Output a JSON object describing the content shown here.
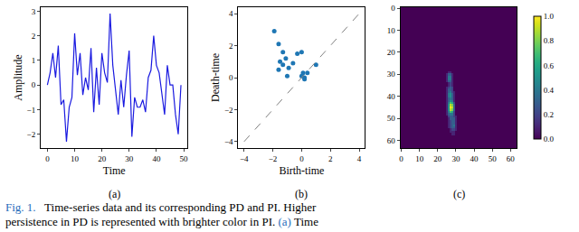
{
  "chart_data": [
    {
      "type": "line",
      "subtitle": "(a)",
      "x_label": "Time",
      "y_label": "Amplitude",
      "color": "#1a1ae0",
      "x": [
        0,
        1,
        2,
        3,
        4,
        5,
        6,
        7,
        8,
        9,
        10,
        11,
        12,
        13,
        14,
        15,
        16,
        17,
        18,
        19,
        20,
        21,
        22,
        23,
        24,
        25,
        26,
        27,
        28,
        29,
        30,
        31,
        32,
        33,
        34,
        35,
        36,
        37,
        38,
        39,
        40,
        41,
        42,
        43,
        44,
        45,
        46,
        47,
        48,
        49
      ],
      "values": [
        0.0,
        0.5,
        1.3,
        0.3,
        1.6,
        -0.8,
        -0.6,
        -2.3,
        -0.9,
        -0.5,
        2.1,
        0.4,
        1.3,
        -0.4,
        0.3,
        -0.2,
        1.5,
        -1.1,
        0.7,
        -0.8,
        1.3,
        0.5,
        0.1,
        2.9,
        0.8,
        -0.3,
        -1.2,
        0.2,
        -0.9,
        0.4,
        1.4,
        -2.1,
        -0.5,
        -0.9,
        -0.9,
        -0.6,
        -1.1,
        0.3,
        0.6,
        2.0,
        0.8,
        0.5,
        -0.3,
        -1.2,
        0.8,
        0.0,
        0.0,
        -1.2,
        -2.0,
        0.0
      ],
      "xlim": [
        -2.45,
        51.45
      ],
      "xticks": [
        0,
        10,
        20,
        30,
        40,
        50
      ],
      "ylim": [
        -2.56,
        3.16
      ],
      "yticks": [
        {
          "value": -2,
          "label": "−2"
        },
        {
          "value": -1,
          "label": "−1"
        },
        0,
        1,
        2,
        3
      ],
      "grid": false
    },
    {
      "type": "scatter",
      "subtitle": "(b)",
      "x_label": "Birth-time",
      "y_label": "Death-time",
      "series": [
        {
          "type": "scatter",
          "color": "#1f77b4",
          "marker": "circle",
          "x": [
            -1.9,
            -1.6,
            -1.3,
            -1.5,
            -1.1,
            -1.3,
            -1.6,
            -0.9,
            -0.6,
            -1.0,
            -0.3,
            0.0,
            0.1,
            0.0,
            0.2,
            0.4,
            1.0,
            0.2
          ],
          "values": [
            2.9,
            2.1,
            1.6,
            1.0,
            1.2,
            0.8,
            0.5,
            0.6,
            0.9,
            0.1,
            1.5,
            1.6,
            0.3,
            0.1,
            -0.1,
            0.3,
            0.8,
            0.0
          ]
        },
        {
          "type": "line",
          "color": "#808080",
          "line_style": "dashed",
          "x": [
            -4,
            4
          ],
          "values": [
            -4,
            4
          ]
        }
      ],
      "xlim": [
        -4.4,
        4.4
      ],
      "xticks": [
        {
          "value": -4,
          "label": "−4"
        },
        {
          "value": -2,
          "label": "−2"
        },
        0,
        2,
        4
      ],
      "ylim": [
        -4.4,
        4.4
      ],
      "yticks": [
        {
          "value": -4,
          "label": "−4"
        },
        {
          "value": -2,
          "label": "−2"
        },
        0,
        2,
        4
      ],
      "grid": false
    },
    {
      "type": "heatmap",
      "subtitle": "(c)",
      "x": [
        22,
        23,
        24,
        25,
        26,
        27,
        28,
        29,
        30,
        31
      ],
      "y": [
        28,
        29,
        30,
        31,
        32,
        33,
        34,
        35,
        36,
        37,
        38,
        39,
        40,
        41,
        42,
        43,
        44,
        45,
        46,
        47,
        48,
        49,
        50,
        51,
        52,
        53,
        54,
        55,
        56,
        57,
        58
      ],
      "cells": [
        [
          0,
          0,
          0,
          0,
          0,
          0,
          0,
          0,
          0,
          0
        ],
        [
          0,
          0,
          0,
          0,
          0.1,
          0.1,
          0,
          0,
          0,
          0
        ],
        [
          0,
          0,
          0,
          0.1,
          0.3,
          0.3,
          0.1,
          0,
          0,
          0
        ],
        [
          0,
          0,
          0,
          0.1,
          0.4,
          0.4,
          0.1,
          0,
          0,
          0
        ],
        [
          0,
          0,
          0,
          0.1,
          0.4,
          0.4,
          0.1,
          0,
          0,
          0
        ],
        [
          0,
          0,
          0,
          0.1,
          0.3,
          0.3,
          0.1,
          0,
          0,
          0
        ],
        [
          0,
          0,
          0,
          0,
          0.1,
          0.2,
          0.1,
          0,
          0,
          0
        ],
        [
          0,
          0,
          0,
          0,
          0.1,
          0.2,
          0.1,
          0,
          0,
          0
        ],
        [
          0,
          0,
          0,
          0.1,
          0.2,
          0.3,
          0.2,
          0,
          0,
          0
        ],
        [
          0,
          0,
          0,
          0.1,
          0.3,
          0.3,
          0.2,
          0,
          0,
          0
        ],
        [
          0,
          0,
          0,
          0.1,
          0.3,
          0.4,
          0.2,
          0.1,
          0,
          0
        ],
        [
          0,
          0,
          0,
          0.1,
          0.4,
          0.5,
          0.3,
          0.1,
          0,
          0
        ],
        [
          0,
          0,
          0,
          0.1,
          0.4,
          0.5,
          0.3,
          0.1,
          0,
          0
        ],
        [
          0,
          0,
          0,
          0.1,
          0.3,
          0.4,
          0.3,
          0.1,
          0,
          0
        ],
        [
          0,
          0,
          0,
          0.1,
          0.3,
          0.5,
          0.4,
          0.1,
          0,
          0
        ],
        [
          0,
          0,
          0,
          0.1,
          0.4,
          0.7,
          0.6,
          0.2,
          0,
          0
        ],
        [
          0,
          0,
          0,
          0.1,
          0.5,
          0.9,
          0.8,
          0.3,
          0,
          0
        ],
        [
          0,
          0,
          0,
          0.1,
          0.5,
          1.0,
          0.9,
          0.3,
          0,
          0
        ],
        [
          0,
          0,
          0,
          0.1,
          0.5,
          0.9,
          0.8,
          0.3,
          0,
          0
        ],
        [
          0,
          0,
          0,
          0.1,
          0.4,
          0.7,
          0.6,
          0.2,
          0,
          0
        ],
        [
          0,
          0,
          0,
          0.1,
          0.3,
          0.4,
          0.4,
          0.2,
          0,
          0
        ],
        [
          0,
          0,
          0,
          0,
          0.2,
          0.3,
          0.3,
          0.2,
          0.1,
          0
        ],
        [
          0,
          0,
          0,
          0,
          0.1,
          0.3,
          0.3,
          0.3,
          0.1,
          0
        ],
        [
          0,
          0,
          0,
          0,
          0.1,
          0.2,
          0.3,
          0.3,
          0.1,
          0
        ],
        [
          0,
          0,
          0,
          0,
          0.1,
          0.2,
          0.3,
          0.3,
          0.1,
          0
        ],
        [
          0,
          0,
          0,
          0,
          0.1,
          0.2,
          0.3,
          0.4,
          0.1,
          0
        ],
        [
          0,
          0,
          0,
          0,
          0.1,
          0.2,
          0.3,
          0.3,
          0.1,
          0
        ],
        [
          0,
          0,
          0,
          0,
          0,
          0.1,
          0.2,
          0.2,
          0.1,
          0
        ],
        [
          0,
          0,
          0,
          0,
          0,
          0.1,
          0.1,
          0.1,
          0,
          0
        ],
        [
          0,
          0,
          0,
          0,
          0,
          0,
          0.1,
          0.1,
          0,
          0
        ],
        [
          0,
          0,
          0,
          0,
          0,
          0,
          0,
          0,
          0,
          0
        ]
      ],
      "xlim": [
        -0.5,
        63.5
      ],
      "xticks": [
        0,
        10,
        20,
        30,
        40,
        50,
        60
      ],
      "ylim": [
        63.5,
        -0.5
      ],
      "yticks": [
        0,
        10,
        20,
        30,
        40,
        50,
        60
      ],
      "colorbar_range": [
        0,
        1
      ],
      "colorbar_ticks": [
        {
          "value": 0,
          "label": "0.0"
        },
        {
          "value": 0.2,
          "label": "0.2"
        },
        {
          "value": 0.4,
          "label": "0.4"
        },
        {
          "value": 0.6,
          "label": "0.6"
        },
        {
          "value": 0.8,
          "label": "0.8"
        },
        {
          "value": 1,
          "label": "1.0"
        }
      ],
      "grid": false
    }
  ],
  "caption": [
    [
      {
        "text": "Fig. 1.",
        "color": "#2a6ebb"
      },
      {
        "text": "   Time-series data and its corresponding PD and PI. Higher"
      }
    ],
    [
      {
        "text": "persistence in PD is represented with brighter color in PI. "
      },
      {
        "text": "(a)",
        "color": "#2a6ebb"
      },
      {
        "text": " Time"
      }
    ]
  ]
}
